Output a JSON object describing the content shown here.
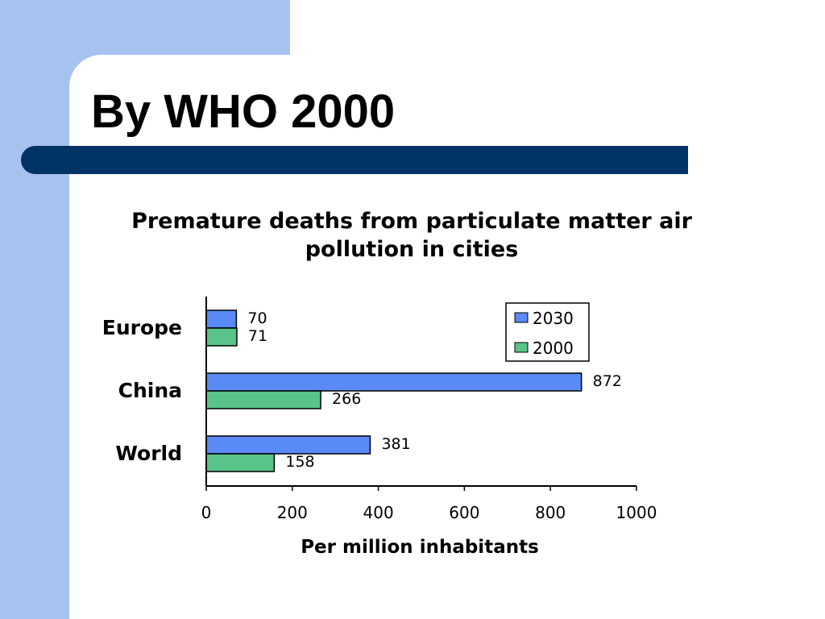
{
  "slide": {
    "title": "By WHO 2000"
  },
  "chart_data": {
    "type": "bar",
    "orientation": "horizontal",
    "title": "Premature deaths from particulate matter air pollution in cities",
    "title_lines": [
      "Premature deaths from particulate matter air",
      "pollution in cities"
    ],
    "xlabel": "Per million inhabitants",
    "ylabel": "",
    "categories": [
      "Europe",
      "China",
      "World"
    ],
    "series": [
      {
        "name": "2030",
        "values": [
          70,
          872,
          381
        ],
        "color": "#5a8af5"
      },
      {
        "name": "2000",
        "values": [
          71,
          266,
          158
        ],
        "color": "#5ac38a"
      }
    ],
    "xlim": [
      0,
      1000
    ],
    "xticks": [
      0,
      200,
      400,
      600,
      800,
      1000
    ],
    "grid": false,
    "legend_position": "top-right",
    "data_labels": true
  }
}
